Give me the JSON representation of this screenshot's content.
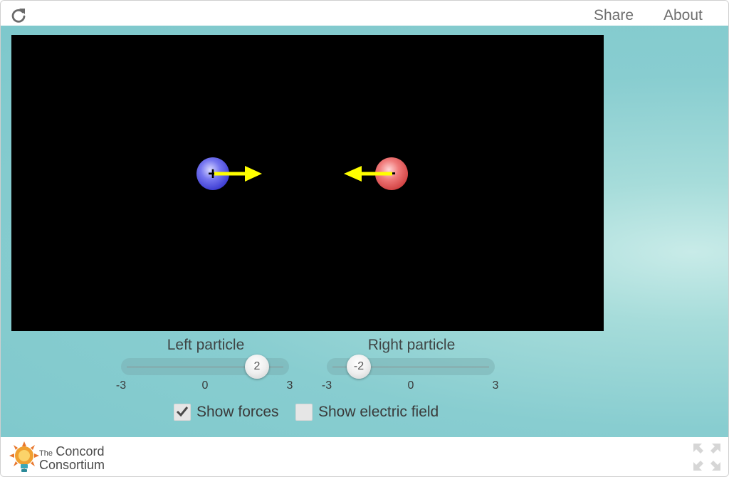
{
  "header": {
    "reload_icon": "reload-icon",
    "share_label": "Share",
    "about_label": "About"
  },
  "simulation": {
    "background_color": "#000000",
    "left_particle": {
      "sign": "+",
      "color": "#5858e6",
      "charge": 2
    },
    "right_particle": {
      "sign": "-",
      "color": "#e85a5a",
      "charge": -2
    },
    "force_arrow_color": "#ffff00"
  },
  "controls": {
    "left_slider": {
      "title": "Left particle",
      "value": 2,
      "min": -3,
      "max": 3,
      "ticks": [
        "-3",
        "0",
        "3"
      ]
    },
    "right_slider": {
      "title": "Right particle",
      "value": -2,
      "min": -3,
      "max": 3,
      "ticks": [
        "-3",
        "0",
        "3"
      ]
    },
    "show_forces": {
      "label": "Show forces",
      "checked": true
    },
    "show_field": {
      "label": "Show electric field",
      "checked": false
    }
  },
  "footer": {
    "logo_line1": "The",
    "logo_line1b": "Concord",
    "logo_line2": "Consortium",
    "fullscreen_icon": "fullscreen-icon"
  },
  "colors": {
    "accent": "#7ec8cc",
    "text": "#3a3a3a"
  }
}
